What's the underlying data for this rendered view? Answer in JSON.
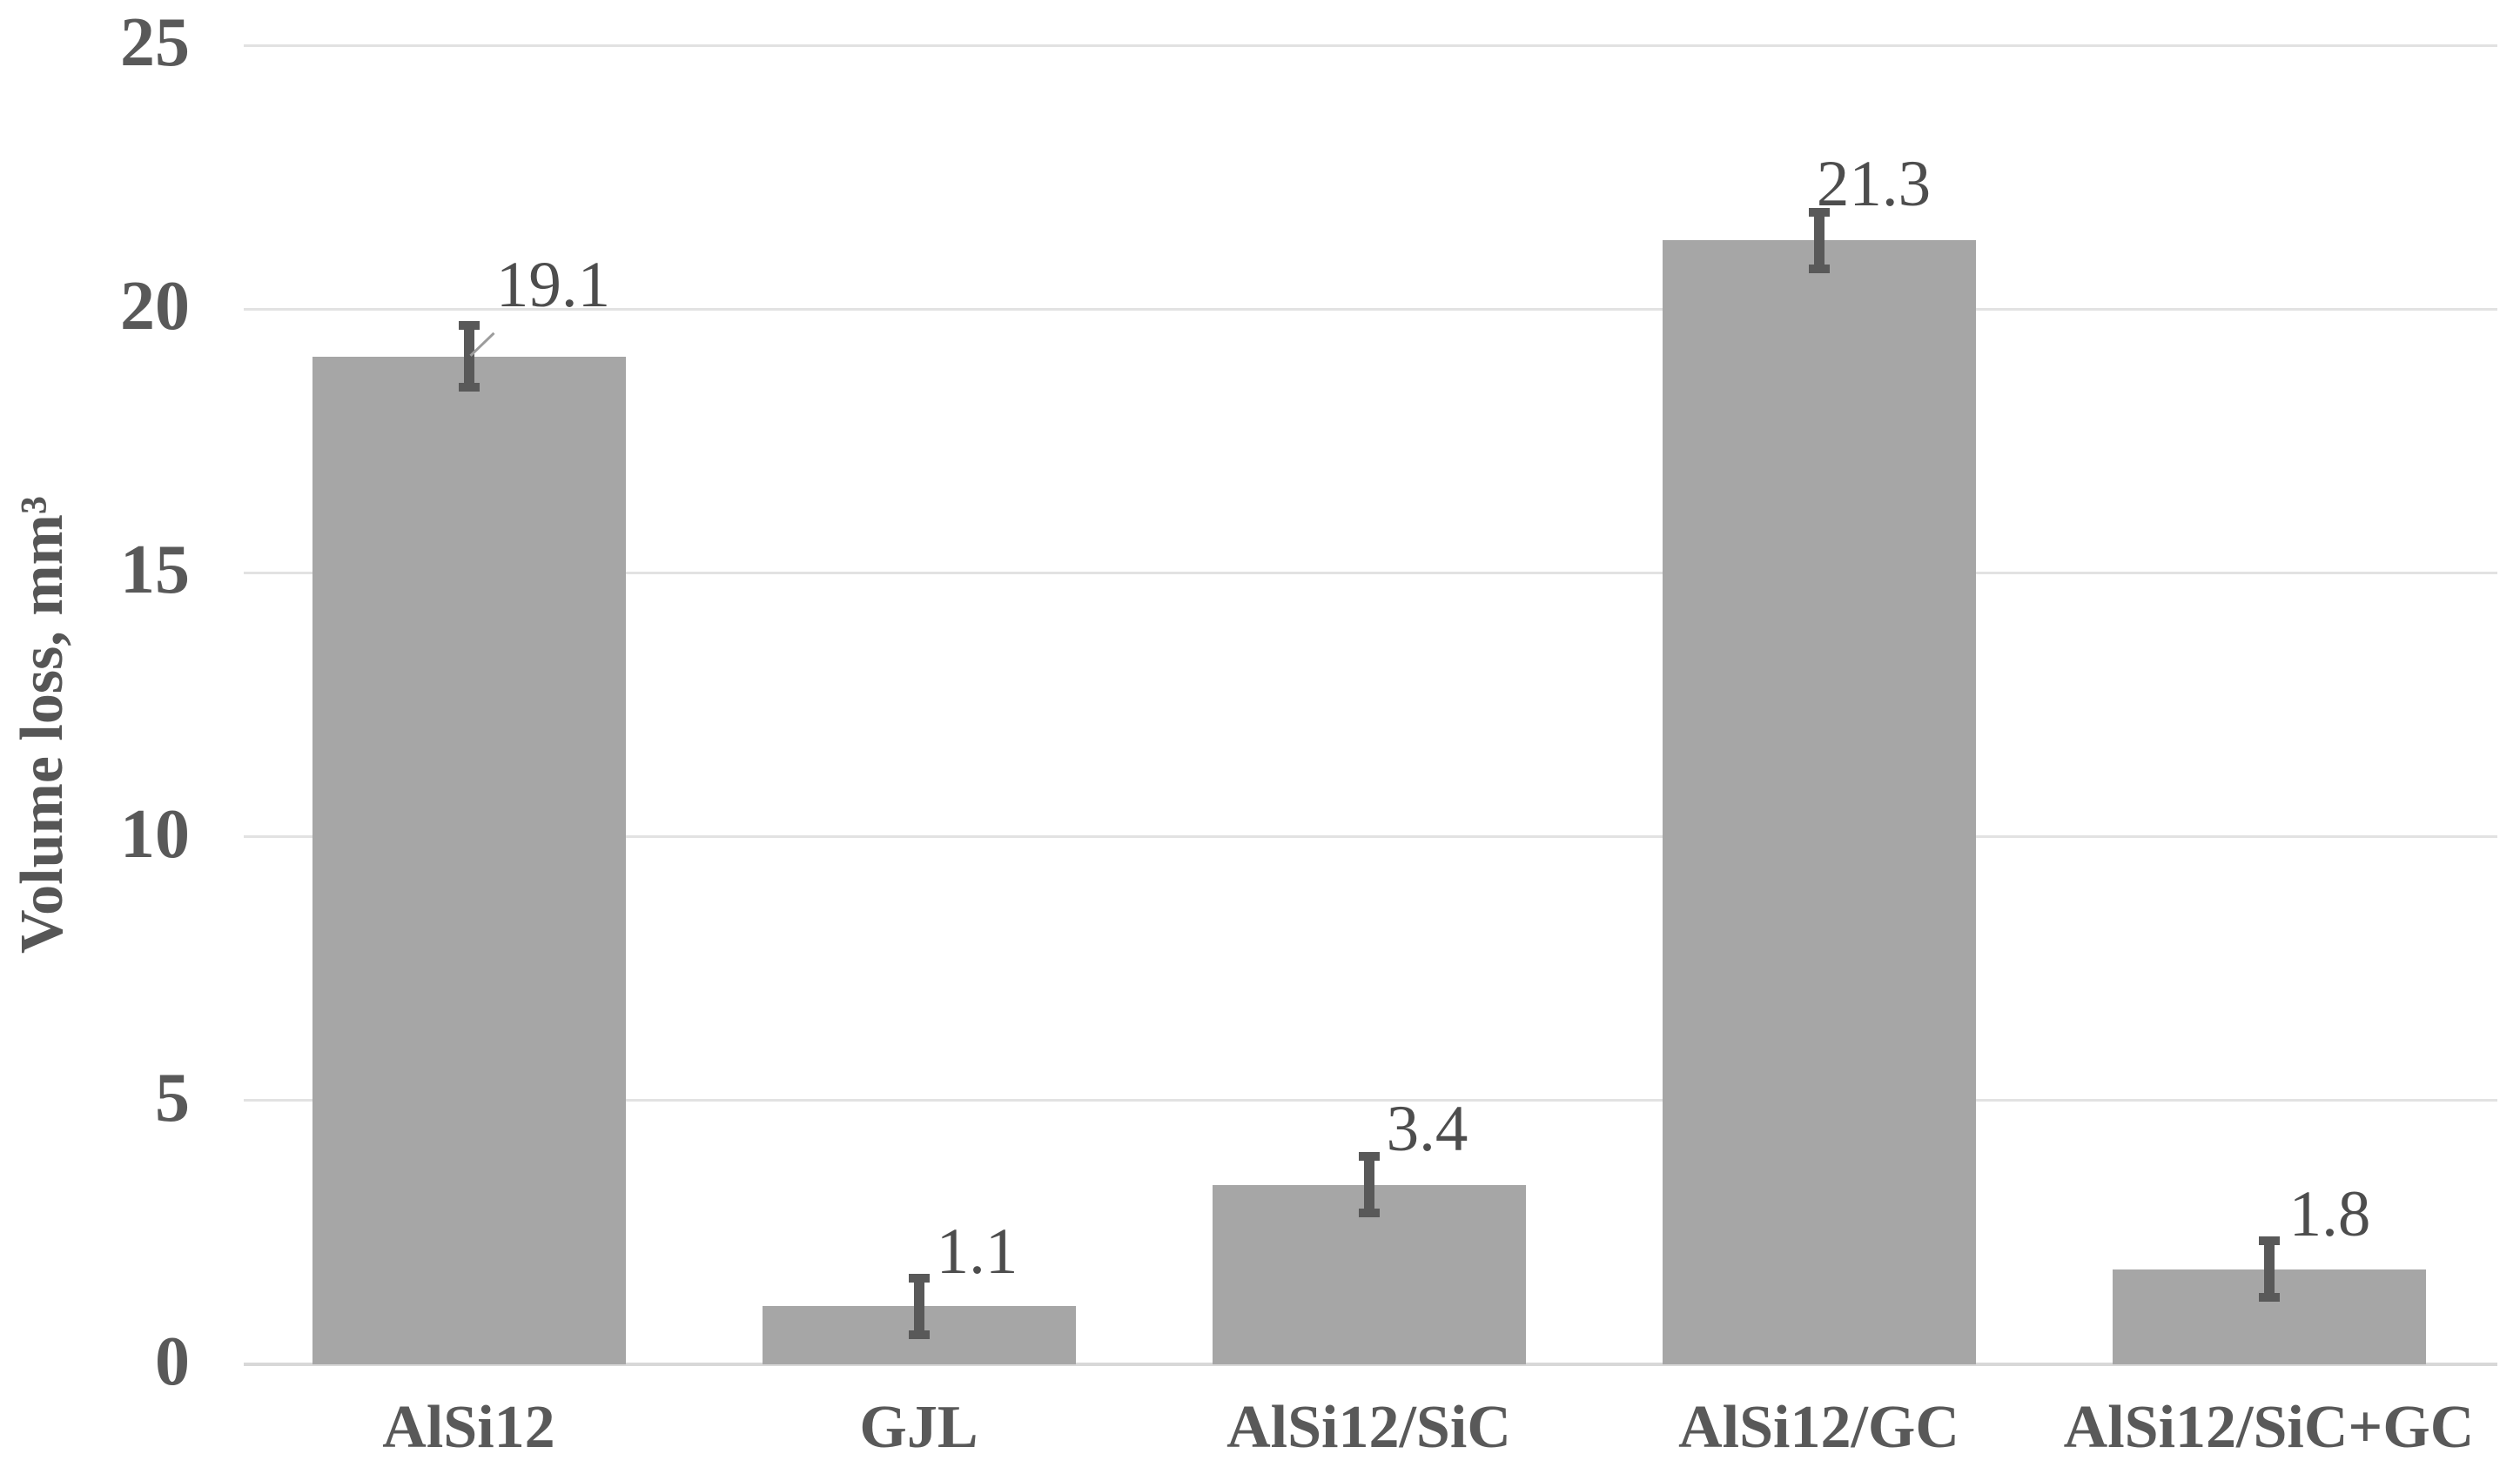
{
  "chart_data": {
    "type": "bar",
    "title": "",
    "categories": [
      "AlSi12",
      "GJL",
      "AlSi12/SiC",
      "AlSi12/GC",
      "AlSi12/SiC+GC"
    ],
    "values": [
      19.1,
      1.1,
      3.4,
      21.3,
      1.8
    ],
    "errors": [
      0.6,
      0.55,
      0.55,
      0.55,
      0.55
    ],
    "data_labels": [
      "19.1",
      "1.1",
      "3.4",
      "21.3",
      "1.8"
    ],
    "xlabel": "",
    "ylabel": "Volume loss, mm³",
    "yticks": [
      0,
      5,
      10,
      15,
      20,
      25
    ],
    "ytick_labels": [
      "0",
      "5",
      "10",
      "15",
      "20",
      "25"
    ],
    "ylim": [
      0,
      25
    ],
    "grid": "horizontal-gridlines",
    "legend_position": "none",
    "colors": {
      "bar_fill": "#a6a6a6",
      "error_bar": "#595959",
      "gridline": "#e2e2e2",
      "axis_line": "#d8d8d8",
      "tick_text": "#595959",
      "data_label_text": "#4d4d4d",
      "leader_line": "#9c9c9c",
      "background": "#ffffff"
    }
  }
}
